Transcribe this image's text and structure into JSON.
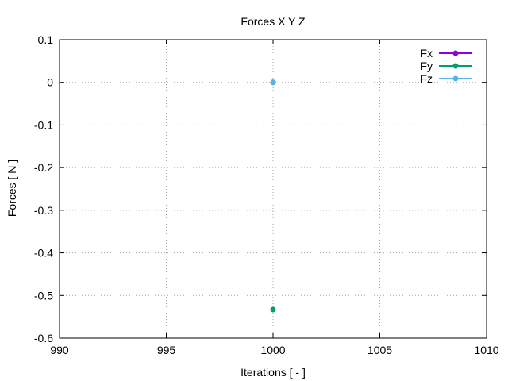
{
  "chart_data": {
    "type": "line",
    "title": "Forces X Y Z",
    "xlabel": "Iterations [ - ]",
    "ylabel": "Forces [ N ]",
    "xlim": [
      990,
      1010
    ],
    "ylim": [
      -0.6,
      0.1
    ],
    "xticks": [
      990,
      995,
      1000,
      1005,
      1010
    ],
    "yticks": [
      -0.6,
      -0.5,
      -0.4,
      -0.3,
      -0.2,
      -0.1,
      0,
      0.1
    ],
    "xtick_labels": [
      "990",
      "995",
      "1000",
      "1005",
      "1010"
    ],
    "ytick_labels": [
      "-0.6",
      "-0.5",
      "-0.4",
      "-0.3",
      "-0.2",
      "-0.1",
      "0",
      "0.1"
    ],
    "grid": true,
    "legend_position": "top-right",
    "series": [
      {
        "name": "Fx",
        "color": "#9400d3",
        "x": [
          1000
        ],
        "y": [
          0
        ]
      },
      {
        "name": "Fy",
        "color": "#009e73",
        "x": [
          1000
        ],
        "y": [
          -0.533
        ]
      },
      {
        "name": "Fz",
        "color": "#56b4e9",
        "x": [
          1000
        ],
        "y": [
          0
        ]
      }
    ]
  }
}
